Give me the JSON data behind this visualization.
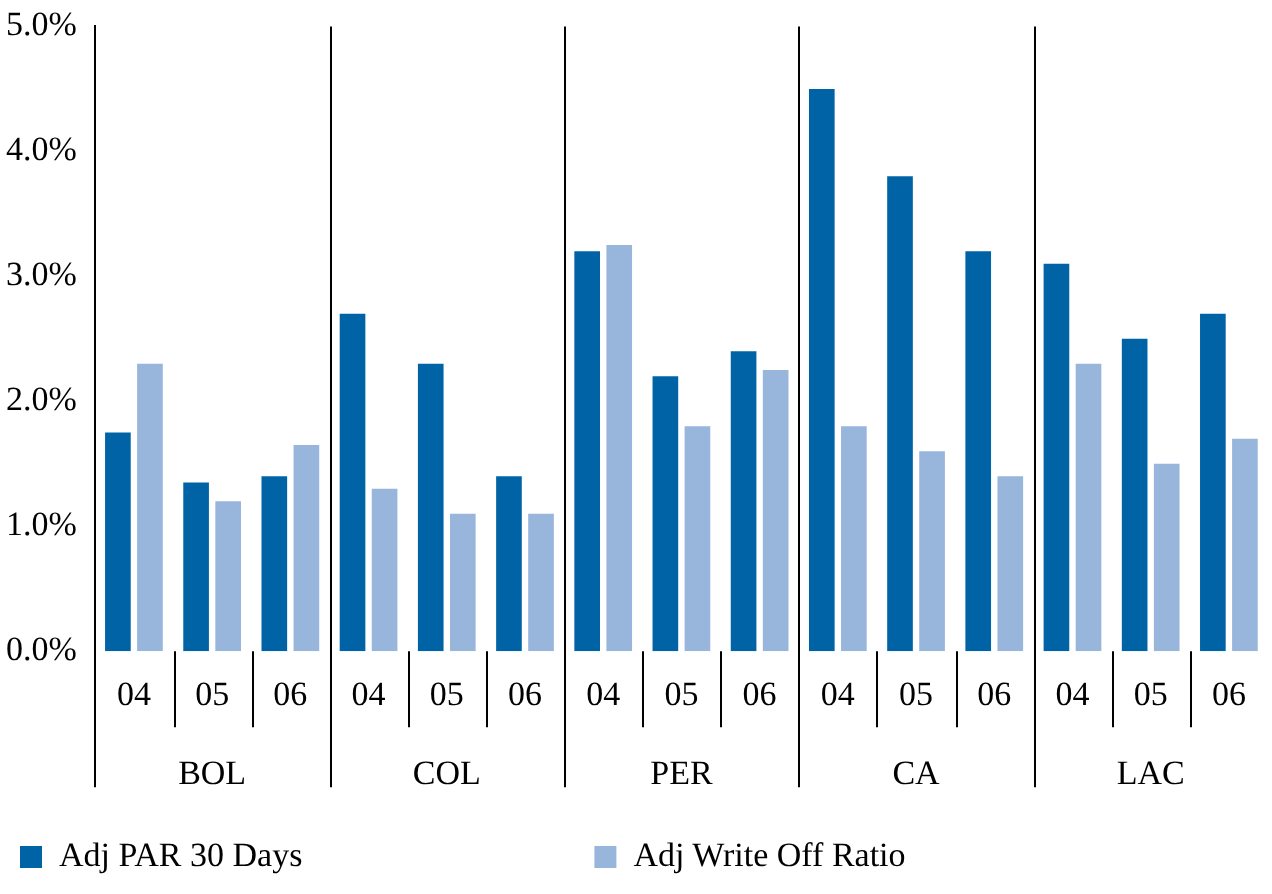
{
  "chart_data": {
    "type": "bar",
    "categories": [
      "04",
      "05",
      "06",
      "04",
      "05",
      "06",
      "04",
      "05",
      "06",
      "04",
      "05",
      "06",
      "04",
      "05",
      "06"
    ],
    "series": [
      {
        "name": "Adj PAR 30 Days",
        "color": "#0063a6",
        "values": [
          1.75,
          1.35,
          1.4,
          2.7,
          2.3,
          1.4,
          3.2,
          2.2,
          2.4,
          4.5,
          3.8,
          3.2,
          3.1,
          2.5,
          2.7
        ]
      },
      {
        "name": "Adj Write Off Ratio",
        "color": "#98b5dc",
        "values": [
          2.3,
          1.2,
          1.65,
          1.3,
          1.1,
          1.1,
          3.25,
          1.8,
          2.25,
          1.8,
          1.6,
          1.4,
          2.3,
          1.5,
          1.7
        ]
      }
    ],
    "annotations": [
      "BOL",
      "COL",
      "PER",
      "CA",
      "LAC"
    ],
    "ylim": [
      0,
      5
    ],
    "yticks": [
      {
        "value": 0,
        "label": "0.0%"
      },
      {
        "value": 1,
        "label": "1.0%"
      },
      {
        "value": 2,
        "label": "2.0%"
      },
      {
        "value": 3,
        "label": "3.0%"
      },
      {
        "value": 4,
        "label": "4.0%"
      },
      {
        "value": 5,
        "label": "5.0%"
      }
    ],
    "grid": false,
    "legend": "bottom"
  }
}
